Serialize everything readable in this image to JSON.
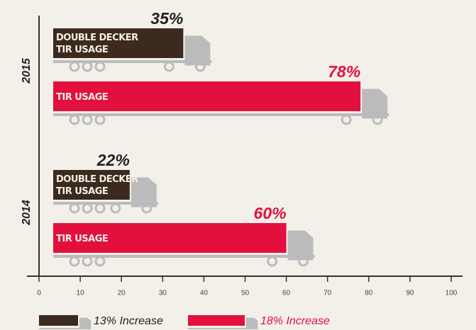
{
  "chart_data": {
    "type": "bar",
    "orientation": "horizontal",
    "categories": [
      "2015",
      "2014"
    ],
    "series": [
      {
        "name": "DOUBLE DECKER TIR USAGE",
        "legend_label": "13% Increase",
        "color": "#3b2a1d",
        "label_color": "#222222",
        "values": [
          35,
          22
        ],
        "value_labels": [
          "35%",
          "22%"
        ]
      },
      {
        "name": "TIR USAGE",
        "legend_label": "18% Increase",
        "color": "#e3103d",
        "label_color": "#e3103d",
        "values": [
          78,
          60
        ],
        "value_labels": [
          "78%",
          "60%"
        ]
      }
    ],
    "xlim": [
      0,
      100
    ],
    "xticks": [
      0,
      10,
      20,
      30,
      40,
      50,
      60,
      70,
      80,
      90,
      100
    ]
  }
}
